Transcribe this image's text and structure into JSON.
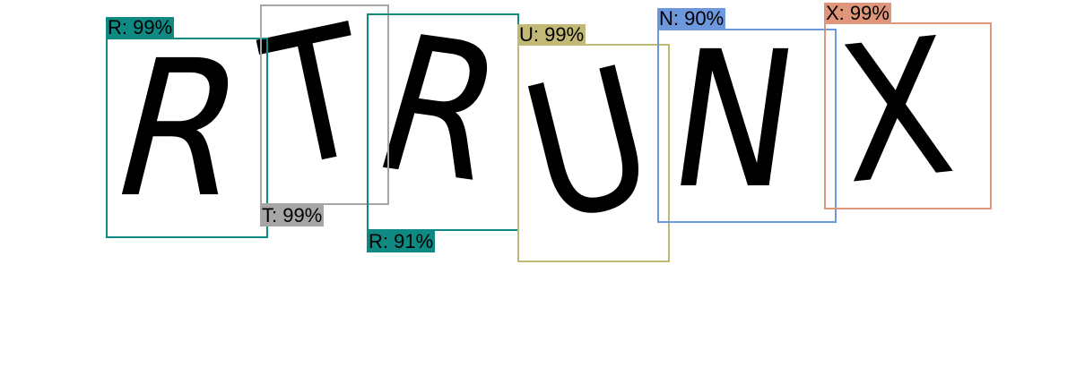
{
  "detections": [
    {
      "label": "R: 99%",
      "char": "R",
      "color": "#0e8a82"
    },
    {
      "label": "T: 99%",
      "char": "T",
      "color": "#a6a6a6"
    },
    {
      "label": "R: 91%",
      "char": "R",
      "color": "#0e8a82"
    },
    {
      "label": "U: 99%",
      "char": "U",
      "color": "#c2b977"
    },
    {
      "label": "N: 90%",
      "char": "N",
      "color": "#6e98de"
    },
    {
      "label": "X: 99%",
      "char": "X",
      "color": "#e0967a"
    }
  ]
}
